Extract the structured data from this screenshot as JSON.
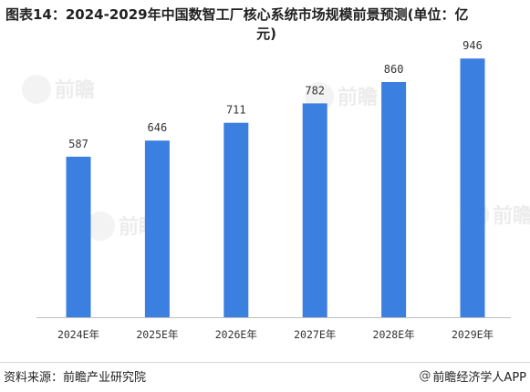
{
  "title": {
    "line1": "图表14：2024-2029年中国数智工厂核心系统市场规模前景预测(单位：亿",
    "line2": "元)"
  },
  "watermark": {
    "text": "前瞻"
  },
  "footer": {
    "source": "资料来源：前瞻产业研究院",
    "brand": "前瞻经济学人APP",
    "brand_icon": "@"
  },
  "colors": {
    "bar": "#3b7fe0",
    "axis": "#bfbfbf"
  },
  "chart_data": {
    "type": "bar",
    "title": "图表14：2024-2029年中国数智工厂核心系统市场规模前景预测(单位：亿元)",
    "categories": [
      "2024E年",
      "2025E年",
      "2026E年",
      "2027E年",
      "2028E年",
      "2029E年"
    ],
    "values": [
      587,
      646,
      711,
      782,
      860,
      946
    ],
    "xlabel": "",
    "ylabel": "",
    "ylim": [
      0,
      1000
    ],
    "grid": false,
    "legend": "none",
    "data_labels": true
  }
}
